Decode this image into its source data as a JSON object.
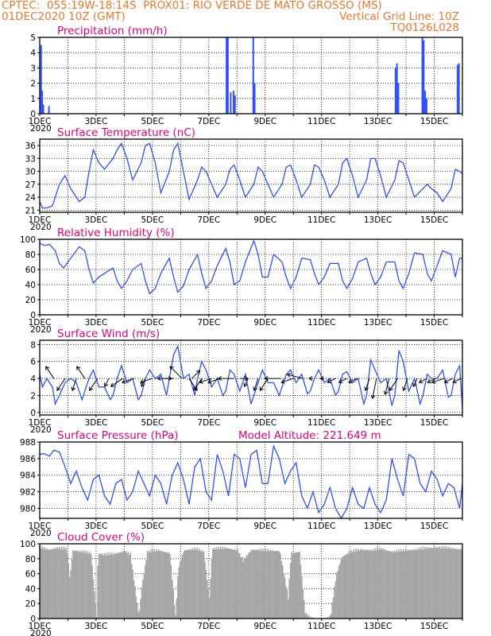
{
  "header": {
    "line1_left": "CPTEC:  055:19W-18:14S  PROX01: RIO VERDE DE MATO GROSSO (MS)",
    "line2_left": "01DEC2020 10Z (GMT)",
    "line2_right": "Vertical Grid Line: 10Z",
    "line3_right": "TQ0126L028"
  },
  "colors": {
    "line": "#3050ff",
    "bar": "#3050ff",
    "cloud": "#a6a6a6",
    "title": "#e6007e",
    "header": "#f0772a",
    "arrow": "#000000"
  },
  "x_labels": [
    "1DEC",
    "3DEC",
    "5DEC",
    "7DEC",
    "9DEC",
    "11DEC",
    "13DEC",
    "15DEC"
  ],
  "x_sublabel": "2020",
  "chart_data": [
    {
      "type": "bar",
      "title": "Precipitation (mm/h)",
      "x_range_days": [
        0,
        15
      ],
      "ylim": [
        0,
        5
      ],
      "yticks": [
        0,
        1,
        2,
        3,
        4,
        5
      ],
      "bars": [
        [
          0.02,
          4.5
        ],
        [
          0.06,
          1.5
        ],
        [
          0.1,
          0.6
        ],
        [
          0.3,
          0.5
        ],
        [
          6.6,
          5
        ],
        [
          6.65,
          5
        ],
        [
          6.75,
          1.4
        ],
        [
          6.85,
          1.5
        ],
        [
          6.9,
          1.2
        ],
        [
          7.55,
          5
        ],
        [
          7.6,
          2
        ],
        [
          12.6,
          3
        ],
        [
          12.65,
          3.3
        ],
        [
          12.7,
          2
        ],
        [
          13.55,
          5
        ],
        [
          13.6,
          4.8
        ],
        [
          13.65,
          1.5
        ],
        [
          13.7,
          1
        ],
        [
          14.8,
          3.2
        ],
        [
          14.85,
          3.3
        ]
      ]
    },
    {
      "type": "line",
      "title": "Surface Temperature (nC)",
      "ylim": [
        20.5,
        37.5
      ],
      "yticks": [
        21,
        24,
        27,
        30,
        33,
        36
      ],
      "x": [
        0,
        0.1,
        0.25,
        0.45,
        0.55,
        0.7,
        0.9,
        1.1,
        1.4,
        1.6,
        1.75,
        1.9,
        2.1,
        2.3,
        2.6,
        2.75,
        2.9,
        3.1,
        3.3,
        3.6,
        3.75,
        3.9,
        4.1,
        4.3,
        4.6,
        4.75,
        4.9,
        5.1,
        5.3,
        5.6,
        5.75,
        5.9,
        6.1,
        6.3,
        6.6,
        6.75,
        6.9,
        7.1,
        7.3,
        7.6,
        7.75,
        7.9,
        8.1,
        8.3,
        8.6,
        8.75,
        8.9,
        9.1,
        9.3,
        9.6,
        9.75,
        9.9,
        10.1,
        10.3,
        10.6,
        10.75,
        10.9,
        11.1,
        11.3,
        11.6,
        11.75,
        11.9,
        12.1,
        12.3,
        12.6,
        12.75,
        12.9,
        13.1,
        13.3,
        13.6,
        13.75,
        13.9,
        14.1,
        14.3,
        14.6,
        14.75,
        14.9,
        15
      ],
      "series": [
        {
          "values": [
            23,
            21.5,
            21.5,
            22,
            24,
            27,
            29,
            26,
            23,
            24,
            30,
            35,
            32,
            30.5,
            33,
            35,
            36.5,
            33,
            28,
            32,
            36,
            36.5,
            32,
            25,
            30,
            35,
            36.5,
            30,
            23.5,
            28,
            31,
            30,
            27,
            24,
            27,
            30.5,
            31.5,
            28,
            24,
            27,
            31,
            30,
            27,
            24,
            27,
            31,
            31.5,
            28,
            24,
            27,
            31.5,
            31,
            28,
            24,
            27,
            32,
            33,
            29,
            24,
            28,
            33,
            33,
            29,
            24,
            28,
            32.5,
            32,
            28,
            24,
            26,
            27,
            26,
            25,
            23,
            26,
            30.5,
            30,
            29.5
          ]
        }
      ]
    },
    {
      "type": "line",
      "title": "Relative Humidity (%)",
      "ylim": [
        0,
        100
      ],
      "yticks": [
        0,
        20,
        40,
        60,
        80,
        100
      ],
      "x": [
        0,
        0.15,
        0.35,
        0.55,
        0.7,
        0.85,
        1.1,
        1.4,
        1.6,
        1.75,
        1.9,
        2.1,
        2.3,
        2.6,
        2.75,
        2.9,
        3.1,
        3.3,
        3.6,
        3.75,
        3.9,
        4.1,
        4.3,
        4.6,
        4.75,
        4.9,
        5.1,
        5.3,
        5.6,
        5.75,
        5.9,
        6.1,
        6.3,
        6.6,
        6.75,
        6.9,
        7.1,
        7.3,
        7.6,
        7.75,
        7.9,
        8.1,
        8.3,
        8.6,
        8.75,
        8.9,
        9.1,
        9.3,
        9.6,
        9.75,
        9.9,
        10.1,
        10.3,
        10.6,
        10.75,
        10.9,
        11.1,
        11.3,
        11.6,
        11.75,
        11.9,
        12.1,
        12.3,
        12.6,
        12.75,
        12.9,
        13.1,
        13.3,
        13.6,
        13.75,
        13.9,
        14.1,
        14.3,
        14.6,
        14.75,
        14.9,
        15
      ],
      "series": [
        {
          "values": [
            95,
            92,
            93,
            85,
            68,
            62,
            75,
            90,
            85,
            60,
            42,
            50,
            55,
            62,
            45,
            35,
            45,
            60,
            68,
            45,
            28,
            35,
            55,
            75,
            50,
            30,
            38,
            60,
            80,
            55,
            35,
            45,
            65,
            88,
            70,
            40,
            45,
            70,
            98,
            80,
            50,
            50,
            80,
            70,
            50,
            35,
            50,
            75,
            73,
            55,
            40,
            50,
            68,
            68,
            45,
            35,
            48,
            70,
            75,
            55,
            40,
            50,
            70,
            70,
            45,
            35,
            55,
            82,
            80,
            55,
            45,
            65,
            85,
            80,
            50,
            75,
            75
          ]
        }
      ]
    },
    {
      "type": "line",
      "title": "Surface Wind (m/s)",
      "ylim": [
        -0.3,
        8.5
      ],
      "yticks": [
        0,
        2,
        4,
        6,
        8
      ],
      "x": [
        0,
        0.1,
        0.25,
        0.45,
        0.55,
        0.7,
        0.9,
        1.1,
        1.3,
        1.5,
        1.6,
        1.75,
        1.9,
        2.1,
        2.3,
        2.5,
        2.6,
        2.75,
        2.9,
        3.1,
        3.3,
        3.5,
        3.6,
        3.75,
        3.9,
        4.1,
        4.3,
        4.5,
        4.6,
        4.75,
        4.9,
        5.1,
        5.3,
        5.5,
        5.6,
        5.75,
        5.9,
        6.1,
        6.3,
        6.5,
        6.6,
        6.75,
        6.9,
        7.1,
        7.3,
        7.5,
        7.6,
        7.75,
        7.9,
        8.1,
        8.3,
        8.5,
        8.6,
        8.75,
        8.9,
        9.1,
        9.3,
        9.5,
        9.6,
        9.75,
        9.9,
        10.1,
        10.3,
        10.5,
        10.6,
        10.75,
        10.9,
        11.1,
        11.3,
        11.5,
        11.6,
        11.75,
        11.9,
        12.1,
        12.3,
        12.5,
        12.6,
        12.75,
        12.9,
        13.1,
        13.3,
        13.5,
        13.6,
        13.75,
        13.9,
        14.1,
        14.3,
        14.5,
        14.6,
        14.75,
        14.9,
        15
      ],
      "series": [
        {
          "values": [
            4.5,
            3,
            4,
            3,
            1,
            2,
            3.5,
            4,
            3.5,
            1.5,
            2.5,
            4,
            5,
            3,
            3,
            1.5,
            2,
            4,
            5.5,
            3.5,
            4,
            1.5,
            2,
            4,
            5,
            4,
            4.5,
            2,
            4,
            6.8,
            7.8,
            4,
            4.5,
            2,
            4,
            6,
            5,
            3,
            4,
            2,
            2.5,
            5,
            4.5,
            2.5,
            4.5,
            1,
            2,
            3.5,
            5,
            3.5,
            3.5,
            2,
            3,
            4.5,
            5,
            3.5,
            4.5,
            2.2,
            2.5,
            4,
            5,
            3.5,
            4,
            2,
            2.5,
            4.5,
            4.8,
            3.5,
            4,
            1,
            2,
            6.2,
            5,
            3.5,
            4,
            0.8,
            2,
            7.3,
            6,
            2.5,
            4,
            1,
            2,
            4.5,
            4,
            4,
            5,
            1.8,
            2,
            4.5,
            5.5,
            0.5
          ]
        }
      ],
      "wind_vectors": [
        [
          0.5,
          -2,
          3
        ],
        [
          0.9,
          -2,
          -3
        ],
        [
          1.3,
          -1,
          -3
        ],
        [
          1.6,
          -2,
          3
        ],
        [
          2.05,
          -2,
          -3
        ],
        [
          2.45,
          -1,
          -2
        ],
        [
          2.95,
          -3,
          -2
        ],
        [
          3.35,
          -3,
          -1
        ],
        [
          3.75,
          -1,
          -2
        ],
        [
          4.0,
          -3,
          -1
        ],
        [
          4.4,
          2,
          0
        ],
        [
          4.75,
          -4,
          0
        ],
        [
          5.05,
          -3,
          3
        ],
        [
          5.3,
          2,
          -3
        ],
        [
          5.4,
          2,
          2
        ],
        [
          5.75,
          -2,
          -3
        ],
        [
          6.1,
          -3,
          -1
        ],
        [
          6.4,
          -3,
          -1
        ],
        [
          6.9,
          -4,
          0
        ],
        [
          7.1,
          2,
          0
        ],
        [
          7.4,
          -1,
          -2
        ],
        [
          7.75,
          -1,
          -3
        ],
        [
          8.1,
          -2,
          -3
        ],
        [
          8.55,
          -4,
          0
        ],
        [
          9.0,
          -3,
          -1
        ],
        [
          9.35,
          -4,
          1
        ],
        [
          9.7,
          -1,
          0
        ],
        [
          10.1,
          -1,
          0
        ],
        [
          10.5,
          -2,
          -1
        ],
        [
          10.9,
          -2,
          -1
        ],
        [
          11.25,
          -2,
          -1
        ],
        [
          11.7,
          -1,
          -3
        ],
        [
          11.95,
          -1,
          -5
        ],
        [
          12.4,
          -1,
          -4
        ],
        [
          12.7,
          -2,
          -3
        ],
        [
          13.05,
          -1,
          -3
        ],
        [
          13.4,
          -1,
          -2
        ],
        [
          13.75,
          -2,
          -1
        ],
        [
          14.05,
          -2,
          -1
        ],
        [
          14.35,
          -3,
          -1
        ],
        [
          14.65,
          -2,
          -1
        ],
        [
          14.95,
          -2,
          -1
        ]
      ]
    },
    {
      "type": "line",
      "title": "Surface Pressure (hPa)",
      "annotation": "Model Altitude: 221.649  m",
      "ylim": [
        978.8,
        988
      ],
      "yticks": [
        980,
        982,
        984,
        986,
        988
      ],
      "x": [
        0,
        0.15,
        0.35,
        0.5,
        0.7,
        0.9,
        1.1,
        1.3,
        1.5,
        1.7,
        1.9,
        2.1,
        2.3,
        2.5,
        2.7,
        2.9,
        3.1,
        3.3,
        3.5,
        3.7,
        3.9,
        4.1,
        4.3,
        4.5,
        4.7,
        4.9,
        5.1,
        5.3,
        5.5,
        5.7,
        5.9,
        6.1,
        6.3,
        6.5,
        6.7,
        6.9,
        7.1,
        7.3,
        7.5,
        7.7,
        7.9,
        8.1,
        8.3,
        8.5,
        8.7,
        8.9,
        9.1,
        9.3,
        9.5,
        9.7,
        9.9,
        10.1,
        10.3,
        10.5,
        10.7,
        10.9,
        11.1,
        11.3,
        11.5,
        11.7,
        11.9,
        12.1,
        12.3,
        12.5,
        12.7,
        12.9,
        13.1,
        13.3,
        13.5,
        13.7,
        13.9,
        14.1,
        14.3,
        14.5,
        14.7,
        14.9,
        15
      ],
      "series": [
        {
          "values": [
            986.5,
            986.6,
            986.3,
            987,
            986.8,
            985,
            983,
            984.5,
            982.5,
            981,
            983.5,
            984,
            981.5,
            980.5,
            983,
            983.5,
            981,
            982,
            984.5,
            983,
            981.5,
            984,
            983,
            980.5,
            984,
            985.5,
            983.5,
            980.5,
            985,
            986,
            982,
            981,
            986.5,
            984.5,
            981.5,
            986.5,
            986,
            982.5,
            986.5,
            987,
            983,
            983,
            987.5,
            986,
            983,
            984.5,
            985.5,
            981.5,
            980,
            982,
            979.5,
            980.5,
            982.5,
            980,
            978.8,
            980,
            982.5,
            980.5,
            980,
            982.5,
            980.5,
            979.5,
            981,
            986,
            983.5,
            981.5,
            986.5,
            986,
            983,
            982,
            984.5,
            983.5,
            981.5,
            983,
            982.5,
            980,
            983
          ]
        }
      ]
    },
    {
      "type": "bar",
      "title": "Cloud Cover (%)",
      "ylim": [
        0,
        100
      ],
      "yticks": [
        0,
        20,
        40,
        60,
        80,
        100
      ],
      "profile": [
        [
          0,
          98
        ],
        [
          0.3,
          95
        ],
        [
          0.6,
          97
        ],
        [
          0.95,
          96
        ],
        [
          1.05,
          55
        ],
        [
          1.15,
          94
        ],
        [
          1.5,
          92
        ],
        [
          1.8,
          90
        ],
        [
          2.0,
          5
        ],
        [
          2.05,
          90
        ],
        [
          2.3,
          88
        ],
        [
          2.7,
          90
        ],
        [
          3.0,
          93
        ],
        [
          3.2,
          88
        ],
        [
          3.5,
          6
        ],
        [
          3.6,
          45
        ],
        [
          3.8,
          92
        ],
        [
          4.2,
          94
        ],
        [
          4.6,
          90
        ],
        [
          4.8,
          5
        ],
        [
          4.9,
          70
        ],
        [
          5.1,
          94
        ],
        [
          5.5,
          96
        ],
        [
          5.8,
          92
        ],
        [
          6.0,
          30
        ],
        [
          6.1,
          96
        ],
        [
          6.6,
          97
        ],
        [
          7.0,
          94
        ],
        [
          7.2,
          80
        ],
        [
          7.5,
          95
        ],
        [
          8.0,
          94
        ],
        [
          8.5,
          93
        ],
        [
          8.8,
          30
        ],
        [
          8.9,
          90
        ],
        [
          9.2,
          92
        ],
        [
          9.4,
          10
        ],
        [
          9.6,
          3
        ],
        [
          9.8,
          1
        ],
        [
          10.1,
          2
        ],
        [
          10.3,
          5
        ],
        [
          10.5,
          60
        ],
        [
          10.7,
          85
        ],
        [
          11.0,
          92
        ],
        [
          11.4,
          95
        ],
        [
          11.8,
          94
        ],
        [
          12.1,
          96
        ],
        [
          12.5,
          92
        ],
        [
          12.9,
          94
        ],
        [
          13.3,
          95
        ],
        [
          13.7,
          97
        ],
        [
          14.1,
          98
        ],
        [
          14.5,
          97
        ],
        [
          15.0,
          95
        ]
      ]
    }
  ]
}
